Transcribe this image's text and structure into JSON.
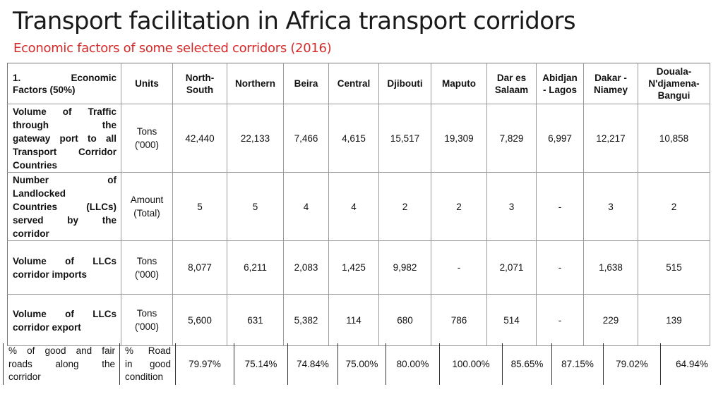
{
  "title": "Transport facilitation in Africa transport corridors",
  "subtitle": "Economic factors of some selected corridors (2016)",
  "table": {
    "header_first": [
      "1.",
      "Economic",
      "Factors (50%)"
    ],
    "header_units": "Units",
    "corridors": [
      [
        "North-",
        "South"
      ],
      [
        "Northern"
      ],
      [
        "Beira"
      ],
      [
        "Central"
      ],
      [
        "Djibouti"
      ],
      [
        "Maputo"
      ],
      [
        "Dar es",
        "Salaam"
      ],
      [
        "Abidjan",
        "- Lagos"
      ],
      [
        "Dakar -",
        "Niamey"
      ],
      [
        "Douala-",
        "N'djamena-",
        "Bangui"
      ]
    ],
    "rows": [
      {
        "label_lines": [
          "Volume of Traffic",
          "through the",
          "gateway port to all",
          "Transport Corridor",
          "Countries"
        ],
        "unit_lines": [
          "Tons",
          "('000)"
        ],
        "values": [
          "42,440",
          "22,133",
          "7,466",
          "4,615",
          "15,517",
          "19,309",
          "7,829",
          "6,997",
          "12,217",
          "10,858"
        ]
      },
      {
        "label_lines": [
          "Number of",
          "Landlocked",
          "Countries (LLCs)",
          "served by the",
          "corridor"
        ],
        "unit_lines": [
          "Amount",
          "(Total)"
        ],
        "values": [
          "5",
          "5",
          "4",
          "4",
          "2",
          "2",
          "3",
          "-",
          "3",
          "2"
        ]
      },
      {
        "label_lines": [
          "Volume of LLCs",
          "corridor imports"
        ],
        "unit_lines": [
          "Tons",
          "('000)"
        ],
        "values": [
          "8,077",
          "6,211",
          "2,083",
          "1,425",
          "9,982",
          "-",
          "2,071",
          "-",
          "1,638",
          "515"
        ]
      },
      {
        "label_lines": [
          "Volume of LLCs",
          "corridor export"
        ],
        "unit_lines": [
          "Tons",
          "('000)"
        ],
        "values": [
          "5,600",
          "631",
          "5,382",
          "114",
          "680",
          "786",
          "514",
          "-",
          "229",
          "139"
        ]
      }
    ],
    "extra_row": {
      "label_lines": [
        "% of good and fair",
        "roads along the",
        "corridor"
      ],
      "unit_lines": [
        "% Road",
        "in good",
        "condition"
      ],
      "values": [
        "79.97%",
        "75.14%",
        "74.84%",
        "75.00%",
        "80.00%",
        "100.00%",
        "85.65%",
        "87.15%",
        "79.02%",
        "64.94%"
      ]
    }
  }
}
